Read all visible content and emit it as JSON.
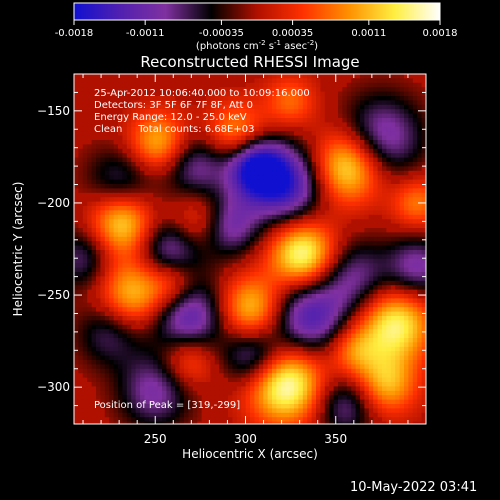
{
  "chart_data": {
    "type": "heatmap",
    "title": "Reconstructed RHESSI Image",
    "xlabel": "Heliocentric X (arcsec)",
    "ylabel": "Heliocentric Y (arcsec)",
    "xlim": [
      205,
      400
    ],
    "ylim": [
      -320,
      -130
    ],
    "x_ticks": [
      250,
      300,
      350
    ],
    "y_ticks": [
      -150,
      -200,
      -250,
      -300
    ],
    "colorbar": {
      "range": [
        -0.0018,
        0.0018
      ],
      "ticks": [
        "-0.0018",
        "-0.0011",
        "-0.00035",
        "0.00035",
        "0.0011",
        "0.0018"
      ],
      "label_parts": [
        "(photons cm",
        "-2",
        " s",
        "-1",
        " asec",
        "-2",
        ")"
      ],
      "colors": [
        "#1010d0",
        "#5020b0",
        "#8030a0",
        "#000000",
        "#b01000",
        "#ff3000",
        "#ff9000",
        "#ffee40",
        "#ffffff"
      ]
    },
    "info_lines": [
      "25-Apr-2012 10:06:40.000 to 10:09:16.000",
      "Detectors: 3F 5F 6F 7F 8F, Att 0",
      "Energy Range: 12.0 - 25.0 keV",
      "Clean     Total counts: 6.68E+03"
    ],
    "peak_text": "Position of Peak = [319,-299]",
    "blobs": [
      {
        "x": 252,
        "y": -168,
        "v": 0.0012,
        "r": 12
      },
      {
        "x": 295,
        "y": -163,
        "v": 0.001,
        "r": 12
      },
      {
        "x": 357,
        "y": -180,
        "v": 0.0016,
        "r": 14
      },
      {
        "x": 325,
        "y": -145,
        "v": 0.0007,
        "r": 10
      },
      {
        "x": 232,
        "y": -210,
        "v": 0.0015,
        "r": 13
      },
      {
        "x": 275,
        "y": -210,
        "v": 0.0009,
        "r": 12
      },
      {
        "x": 332,
        "y": -228,
        "v": 0.0017,
        "r": 13
      },
      {
        "x": 395,
        "y": -200,
        "v": 0.0008,
        "r": 10
      },
      {
        "x": 238,
        "y": -250,
        "v": 0.0013,
        "r": 14
      },
      {
        "x": 260,
        "y": -243,
        "v": 0.0009,
        "r": 10
      },
      {
        "x": 303,
        "y": -258,
        "v": 0.0013,
        "r": 13
      },
      {
        "x": 383,
        "y": -266,
        "v": 0.0015,
        "r": 14
      },
      {
        "x": 360,
        "y": -280,
        "v": 0.0008,
        "r": 10
      },
      {
        "x": 268,
        "y": -285,
        "v": 0.0009,
        "r": 11
      },
      {
        "x": 322,
        "y": -298,
        "v": 0.0018,
        "r": 15
      },
      {
        "x": 378,
        "y": -298,
        "v": 0.0011,
        "r": 12
      },
      {
        "x": 232,
        "y": -190,
        "v": -0.0009,
        "r": 14
      },
      {
        "x": 272,
        "y": -180,
        "v": -0.001,
        "r": 13
      },
      {
        "x": 322,
        "y": -190,
        "v": -0.0016,
        "r": 15
      },
      {
        "x": 305,
        "y": -180,
        "v": -0.0017,
        "r": 11
      },
      {
        "x": 375,
        "y": -165,
        "v": -0.0012,
        "r": 16
      },
      {
        "x": 290,
        "y": -212,
        "v": -0.0012,
        "r": 12
      },
      {
        "x": 258,
        "y": -226,
        "v": -0.0012,
        "r": 13
      },
      {
        "x": 360,
        "y": -240,
        "v": -0.0009,
        "r": 14
      },
      {
        "x": 225,
        "y": -270,
        "v": -0.0008,
        "r": 13
      },
      {
        "x": 268,
        "y": -262,
        "v": -0.0014,
        "r": 15
      },
      {
        "x": 335,
        "y": -262,
        "v": -0.0014,
        "r": 15
      },
      {
        "x": 250,
        "y": -302,
        "v": -0.001,
        "r": 14
      },
      {
        "x": 305,
        "y": -283,
        "v": -0.0012,
        "r": 12
      },
      {
        "x": 395,
        "y": -235,
        "v": -0.001,
        "r": 12
      },
      {
        "x": 355,
        "y": -310,
        "v": -0.0009,
        "r": 12
      },
      {
        "x": 210,
        "y": -230,
        "v": -0.0008,
        "r": 12
      }
    ]
  },
  "timestamp": "10-May-2022 03:41"
}
